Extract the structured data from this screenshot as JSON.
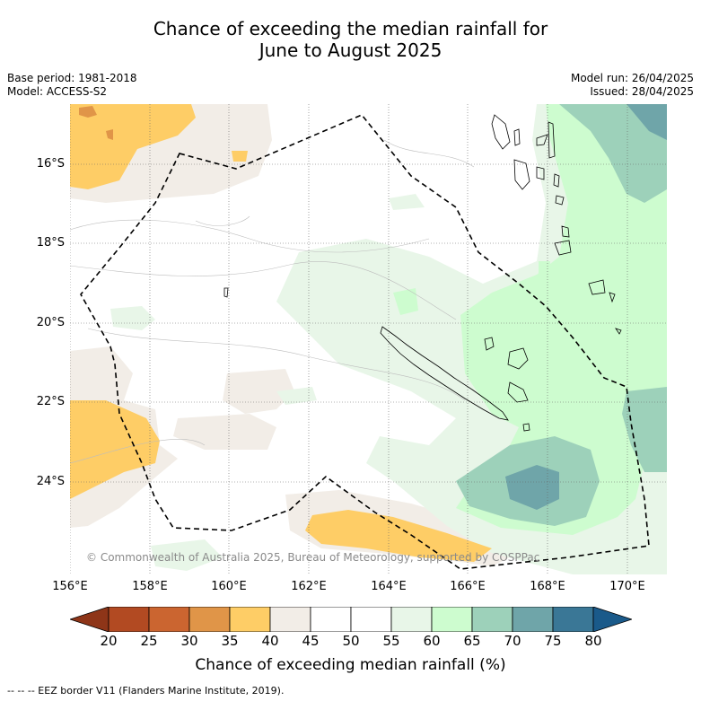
{
  "title_line1": "Chance of exceeding the median rainfall for",
  "title_line2": "June to August 2025",
  "base_period": "Base period: 1981-2018",
  "model": "Model: ACCESS-S2",
  "model_run": "Model run: 26/04/2025",
  "issued": "Issued: 28/04/2025",
  "lat_labels": [
    "16°S",
    "18°S",
    "20°S",
    "22°S",
    "24°S"
  ],
  "lon_labels": [
    "156°E",
    "158°E",
    "160°E",
    "162°E",
    "164°E",
    "166°E",
    "168°E",
    "170°E"
  ],
  "copyright": "© Commonwealth of Australia 2025, Bureau of Meteorology, supported by COSPPac",
  "colorbar": {
    "ticks": [
      "20",
      "25",
      "30",
      "35",
      "40",
      "45",
      "50",
      "55",
      "60",
      "65",
      "70",
      "75",
      "80"
    ],
    "colors": [
      "#8e3518",
      "#b24a22",
      "#cb6530",
      "#e09548",
      "#fecd66",
      "#f2ede7",
      "#ffffff",
      "#ffffff",
      "#e8f6e8",
      "#cdfccf",
      "#9dd1ba",
      "#6fa5a9",
      "#3a7796",
      "#1a5a8a"
    ],
    "label": "Chance of exceeding median rainfall (%)"
  },
  "eez_note": "--  --  -- EEZ border V11 (Flanders Marine Institute, 2019)."
}
